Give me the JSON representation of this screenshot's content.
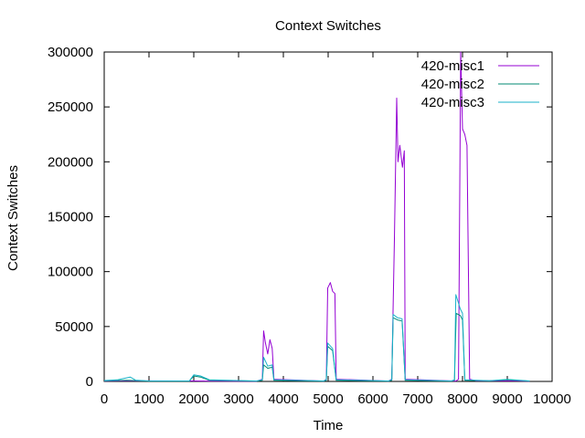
{
  "chart_data": {
    "type": "line",
    "title": "Context Switches",
    "xlabel": "Time",
    "ylabel": "Context Switches",
    "xlim": [
      0,
      10000
    ],
    "ylim": [
      0,
      300000
    ],
    "x_ticks": [
      0,
      1000,
      2000,
      3000,
      4000,
      5000,
      6000,
      7000,
      8000,
      9000,
      10000
    ],
    "y_ticks": [
      0,
      50000,
      100000,
      150000,
      200000,
      250000,
      300000
    ],
    "grid": false,
    "legend_position": "top-right",
    "series": [
      {
        "name": "420-misc1",
        "color": "#9400d3",
        "points": [
          [
            0,
            300
          ],
          [
            500,
            500
          ],
          [
            2000,
            400
          ],
          [
            2300,
            300
          ],
          [
            3400,
            200
          ],
          [
            3530,
            2000
          ],
          [
            3560,
            46000
          ],
          [
            3600,
            35000
          ],
          [
            3650,
            25000
          ],
          [
            3700,
            38000
          ],
          [
            3750,
            30000
          ],
          [
            3790,
            2000
          ],
          [
            4900,
            300
          ],
          [
            4960,
            2000
          ],
          [
            4990,
            85000
          ],
          [
            5050,
            90000
          ],
          [
            5100,
            82000
          ],
          [
            5150,
            80000
          ],
          [
            5180,
            2000
          ],
          [
            6350,
            300
          ],
          [
            6420,
            2000
          ],
          [
            6480,
            130000
          ],
          [
            6530,
            258000
          ],
          [
            6560,
            200000
          ],
          [
            6600,
            215000
          ],
          [
            6660,
            195000
          ],
          [
            6700,
            210000
          ],
          [
            6720,
            2000
          ],
          [
            7850,
            300
          ],
          [
            7910,
            2000
          ],
          [
            7960,
            300000
          ],
          [
            8000,
            230000
          ],
          [
            8050,
            225000
          ],
          [
            8100,
            215000
          ],
          [
            8160,
            2000
          ],
          [
            8300,
            500
          ],
          [
            9000,
            600
          ],
          [
            9500,
            200
          ]
        ]
      },
      {
        "name": "420-misc2",
        "color": "#008a73",
        "points": [
          [
            0,
            500
          ],
          [
            500,
            1000
          ],
          [
            1000,
            300
          ],
          [
            1900,
            300
          ],
          [
            2000,
            5000
          ],
          [
            2150,
            4000
          ],
          [
            2350,
            1000
          ],
          [
            3400,
            300
          ],
          [
            3530,
            1000
          ],
          [
            3560,
            15000
          ],
          [
            3650,
            12000
          ],
          [
            3750,
            13000
          ],
          [
            3790,
            1000
          ],
          [
            4900,
            300
          ],
          [
            4960,
            1000
          ],
          [
            4990,
            32000
          ],
          [
            5100,
            28000
          ],
          [
            5180,
            1000
          ],
          [
            6350,
            300
          ],
          [
            6420,
            1000
          ],
          [
            6450,
            58000
          ],
          [
            6550,
            56000
          ],
          [
            6650,
            55000
          ],
          [
            6720,
            1000
          ],
          [
            7750,
            300
          ],
          [
            7820,
            1000
          ],
          [
            7860,
            62000
          ],
          [
            7950,
            60000
          ],
          [
            8000,
            56000
          ],
          [
            8050,
            1000
          ],
          [
            8600,
            500
          ],
          [
            9000,
            1500
          ],
          [
            9500,
            300
          ]
        ]
      },
      {
        "name": "420-misc3",
        "color": "#18b2c8",
        "points": [
          [
            0,
            800
          ],
          [
            300,
            1500
          ],
          [
            580,
            4000
          ],
          [
            700,
            1200
          ],
          [
            1000,
            400
          ],
          [
            1900,
            400
          ],
          [
            2000,
            6000
          ],
          [
            2150,
            5000
          ],
          [
            2350,
            1500
          ],
          [
            3400,
            400
          ],
          [
            3530,
            1500
          ],
          [
            3560,
            22000
          ],
          [
            3650,
            14000
          ],
          [
            3750,
            15000
          ],
          [
            3790,
            1500
          ],
          [
            4900,
            400
          ],
          [
            4960,
            1500
          ],
          [
            4990,
            35000
          ],
          [
            5100,
            30000
          ],
          [
            5180,
            1500
          ],
          [
            6350,
            400
          ],
          [
            6420,
            1500
          ],
          [
            6450,
            61000
          ],
          [
            6550,
            58000
          ],
          [
            6650,
            57000
          ],
          [
            6720,
            1500
          ],
          [
            7750,
            400
          ],
          [
            7820,
            1500
          ],
          [
            7850,
            79000
          ],
          [
            7950,
            66000
          ],
          [
            8000,
            62000
          ],
          [
            8050,
            1500
          ],
          [
            8600,
            600
          ],
          [
            9000,
            1800
          ],
          [
            9500,
            400
          ]
        ]
      }
    ]
  }
}
